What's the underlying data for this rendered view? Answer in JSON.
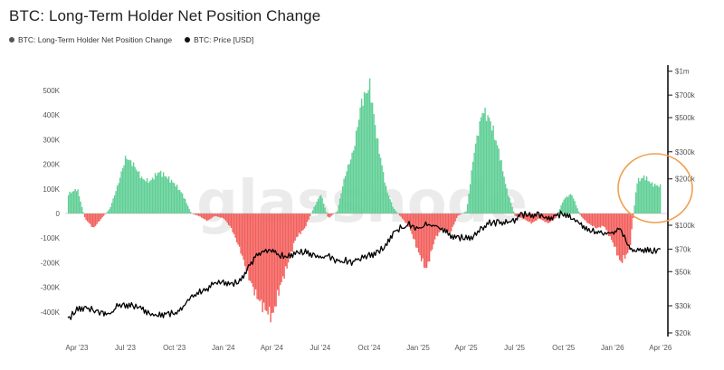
{
  "title": "BTC: Long-Term Holder Net Position Change",
  "legend": [
    {
      "label": "BTC: Long-Term Holder Net Position Change",
      "color": "#555555"
    },
    {
      "label": "BTC: Price [USD]",
      "color": "#111111"
    }
  ],
  "watermark": "glassnode",
  "colors": {
    "positive": "#5fcf95",
    "negative": "#f25f5c",
    "price": "#000000",
    "highlight": "#f0a050"
  },
  "chart_data": {
    "type": "area",
    "x_ticks": [
      "Apr '23",
      "Jul '23",
      "Oct '23",
      "Jan '24",
      "Apr '24",
      "Jul '24",
      "Oct '24",
      "Jan '25",
      "Apr '25",
      "Jul '25",
      "Oct '25",
      "Jan '26",
      "Apr '26"
    ],
    "left_axis": {
      "ticks": [
        "500K",
        "400K",
        "300K",
        "200K",
        "100K",
        "0",
        "-100K",
        "-200K",
        "-300K",
        "-400K"
      ],
      "range": [
        -450000,
        540000
      ]
    },
    "right_axis": {
      "ticks": [
        "$1m",
        "$700k",
        "$500k",
        "$300k",
        "$200k",
        "$100k",
        "$70k",
        "$50k",
        "$30k",
        "$20k"
      ],
      "scale": "log"
    },
    "series": [
      {
        "name": "BTC: Long-Term Holder Net Position Change",
        "x": [
          "2023-03-15",
          "2023-04-01",
          "2023-04-15",
          "2023-05-01",
          "2023-05-20",
          "2023-06-01",
          "2023-06-15",
          "2023-07-01",
          "2023-07-15",
          "2023-08-01",
          "2023-08-15",
          "2023-09-01",
          "2023-09-15",
          "2023-10-01",
          "2023-10-15",
          "2023-11-01",
          "2023-11-15",
          "2023-12-01",
          "2023-12-15",
          "2024-01-01",
          "2024-01-15",
          "2024-02-01",
          "2024-02-15",
          "2024-03-01",
          "2024-03-15",
          "2024-04-01",
          "2024-04-15",
          "2024-05-01",
          "2024-05-15",
          "2024-06-01",
          "2024-06-15",
          "2024-07-01",
          "2024-07-15",
          "2024-08-01",
          "2024-08-15",
          "2024-09-01",
          "2024-09-15",
          "2024-10-01",
          "2024-10-15",
          "2024-11-01",
          "2024-11-15",
          "2024-12-01",
          "2024-12-15",
          "2025-01-01",
          "2025-01-15",
          "2025-02-01",
          "2025-02-15",
          "2025-03-01",
          "2025-03-15",
          "2025-04-01",
          "2025-04-15",
          "2025-05-01",
          "2025-05-15",
          "2025-06-01",
          "2025-06-15",
          "2025-07-01",
          "2025-07-15",
          "2025-08-01",
          "2025-08-15",
          "2025-09-01",
          "2025-09-15",
          "2025-10-01",
          "2025-10-15",
          "2025-11-01",
          "2025-11-15",
          "2025-12-01",
          "2025-12-15",
          "2026-01-01",
          "2026-01-15",
          "2026-02-01",
          "2026-02-15",
          "2026-03-01",
          "2026-03-15",
          "2026-04-01"
        ],
        "values": [
          80000,
          100000,
          -20000,
          -60000,
          -10000,
          20000,
          110000,
          230000,
          200000,
          140000,
          130000,
          170000,
          150000,
          120000,
          80000,
          0,
          -10000,
          -30000,
          -10000,
          -20000,
          -60000,
          -150000,
          -250000,
          -330000,
          -380000,
          -420000,
          -300000,
          -200000,
          -100000,
          -60000,
          10000,
          80000,
          -20000,
          10000,
          150000,
          260000,
          450000,
          520000,
          300000,
          100000,
          20000,
          -20000,
          -60000,
          -160000,
          -230000,
          -100000,
          -60000,
          -80000,
          -10000,
          10000,
          250000,
          420000,
          380000,
          250000,
          100000,
          -10000,
          -20000,
          -40000,
          -20000,
          -40000,
          -20000,
          60000,
          80000,
          -10000,
          -40000,
          -60000,
          -50000,
          -120000,
          -200000,
          -150000,
          130000,
          150000,
          120000,
          110000
        ]
      },
      {
        "name": "BTC: Price [USD]",
        "x": [
          "2023-03-15",
          "2023-04-01",
          "2023-04-15",
          "2023-05-01",
          "2023-05-20",
          "2023-06-01",
          "2023-06-15",
          "2023-07-01",
          "2023-07-15",
          "2023-08-01",
          "2023-08-15",
          "2023-09-01",
          "2023-09-15",
          "2023-10-01",
          "2023-10-15",
          "2023-11-01",
          "2023-11-15",
          "2023-12-01",
          "2023-12-15",
          "2024-01-01",
          "2024-01-15",
          "2024-02-01",
          "2024-02-15",
          "2024-03-01",
          "2024-03-15",
          "2024-04-01",
          "2024-04-15",
          "2024-05-01",
          "2024-05-15",
          "2024-06-01",
          "2024-06-15",
          "2024-07-01",
          "2024-07-15",
          "2024-08-01",
          "2024-08-15",
          "2024-09-01",
          "2024-09-15",
          "2024-10-01",
          "2024-10-15",
          "2024-11-01",
          "2024-11-15",
          "2024-12-01",
          "2024-12-15",
          "2025-01-01",
          "2025-01-15",
          "2025-02-01",
          "2025-02-15",
          "2025-03-01",
          "2025-03-15",
          "2025-04-01",
          "2025-04-15",
          "2025-05-01",
          "2025-05-15",
          "2025-06-01",
          "2025-06-15",
          "2025-07-01",
          "2025-07-15",
          "2025-08-01",
          "2025-08-15",
          "2025-09-01",
          "2025-09-15",
          "2025-10-01",
          "2025-10-15",
          "2025-11-01",
          "2025-11-15",
          "2025-12-01",
          "2025-12-15",
          "2026-01-01",
          "2026-01-15",
          "2026-02-01",
          "2026-02-15",
          "2026-03-01",
          "2026-03-15",
          "2026-04-01"
        ],
        "values": [
          24500,
          28000,
          29500,
          28000,
          27000,
          26000,
          30000,
          30500,
          29800,
          29200,
          26500,
          25900,
          26800,
          27000,
          28500,
          34500,
          36500,
          38500,
          42000,
          43000,
          41500,
          43000,
          52000,
          62000,
          68000,
          68500,
          63500,
          62500,
          66500,
          67000,
          65000,
          62000,
          64000,
          58500,
          59000,
          57500,
          61500,
          63500,
          67000,
          72000,
          90000,
          96000,
          101000,
          94000,
          102000,
          98000,
          95000,
          86000,
          84000,
          82000,
          85000,
          96000,
          103000,
          105000,
          104000,
          108000,
          118000,
          116000,
          118000,
          110000,
          115000,
          120000,
          111000,
          104000,
          93000,
          91000,
          88000,
          90000,
          95000,
          72000,
          68000,
          70000,
          67000,
          70000
        ]
      }
    ]
  }
}
